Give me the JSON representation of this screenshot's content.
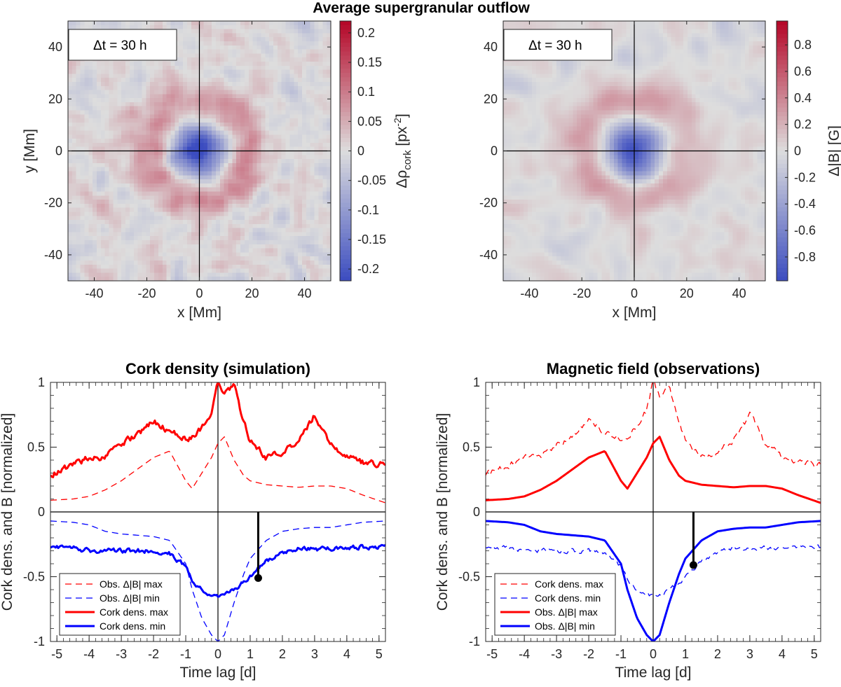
{
  "figure": {
    "suptitle": "Average supergranular outflow"
  },
  "chart_data": [
    {
      "type": "heatmap",
      "id": "map-cork",
      "annotation": "Δt = 30 h",
      "xlabel": "x [Mm]",
      "ylabel": "y [Mm]",
      "colorbar_label": "Δρcork [px⁻²]",
      "colorbar_label_parts": {
        "symbol": "Δρ",
        "subscript": "cork",
        "unit_open": " [px",
        "unit_sup": "-2",
        "unit_close": "]"
      },
      "xlim": [
        -50,
        50
      ],
      "ylim": [
        -50,
        50
      ],
      "xticks": [
        -40,
        -20,
        0,
        20,
        40
      ],
      "yticks": [
        -40,
        -20,
        0,
        20,
        40
      ],
      "clim": [
        -0.22,
        0.22
      ],
      "cticks": [
        -0.2,
        -0.15,
        -0.1,
        -0.05,
        0,
        0.05,
        0.1,
        0.15,
        0.2
      ],
      "ctick_labels": [
        "-0.2",
        "-0.15",
        "-0.1",
        "-0.05",
        "0",
        "0.05",
        "0.1",
        "0.15",
        "0.2"
      ],
      "colormap": {
        "low": "#3b4cc0",
        "mid": "#dddddd",
        "high": "#b40426"
      },
      "features": {
        "center_min": -0.22,
        "center_radius": 9,
        "ring_max": 0.1,
        "ring_radius": 17,
        "ring_width": 6,
        "noise": 0.035
      }
    },
    {
      "type": "heatmap",
      "id": "map-field",
      "annotation": "Δt = 30 h",
      "xlabel": "x [Mm]",
      "ylabel": "",
      "colorbar_label": "Δ|B| [G]",
      "xlim": [
        -50,
        50
      ],
      "ylim": [
        -50,
        50
      ],
      "xticks": [
        -40,
        -20,
        0,
        20,
        40
      ],
      "yticks": [
        -40,
        -20,
        0,
        20,
        40
      ],
      "clim": [
        -0.98,
        0.98
      ],
      "cticks": [
        -0.8,
        -0.6,
        -0.4,
        -0.2,
        0,
        0.2,
        0.4,
        0.6,
        0.8
      ],
      "ctick_labels": [
        "-0.8",
        "-0.6",
        "-0.4",
        "-0.2",
        "0",
        "0.2",
        "0.4",
        "0.6",
        "0.8"
      ],
      "colormap": {
        "low": "#3b4cc0",
        "mid": "#dddddd",
        "high": "#b40426"
      },
      "features": {
        "center_min": -0.98,
        "center_radius": 9,
        "ring_max": 0.35,
        "ring_radius": 17,
        "ring_width": 7,
        "noise": 0.12
      }
    },
    {
      "type": "line",
      "id": "lines-sim",
      "title": "Cork density (simulation)",
      "xlabel": "Time lag [d]",
      "ylabel": "Cork dens. and B [normalized]",
      "xlim": [
        -5.2,
        5.2
      ],
      "ylim": [
        -1,
        1
      ],
      "xticks": [
        -5,
        -4,
        -3,
        -2,
        -1,
        0,
        1,
        2,
        3,
        4,
        5
      ],
      "yticks": [
        -1,
        -0.5,
        0,
        0.5,
        1
      ],
      "ytick_labels": [
        "-1",
        "-0.5",
        "0",
        "0.5",
        "1"
      ],
      "marker": {
        "x": 1.25,
        "y": -0.51
      },
      "x": [
        -5.2,
        -4.5,
        -4,
        -3.5,
        -3,
        -2.5,
        -2,
        -1.5,
        -1,
        -0.8,
        -0.5,
        -0.2,
        0,
        0.2,
        0.5,
        0.8,
        1,
        1.5,
        2,
        2.5,
        3,
        3.5,
        4,
        4.5,
        5.2
      ],
      "series": [
        {
          "name": "Obs. Δ|B| max",
          "color": "#ff0000",
          "dash": true,
          "width": 1.3,
          "noise": 0.0,
          "values": [
            0.09,
            0.1,
            0.12,
            0.17,
            0.24,
            0.33,
            0.42,
            0.47,
            0.24,
            0.18,
            0.3,
            0.42,
            0.53,
            0.58,
            0.4,
            0.28,
            0.24,
            0.21,
            0.2,
            0.19,
            0.2,
            0.2,
            0.18,
            0.13,
            0.07
          ]
        },
        {
          "name": "Obs. Δ|B| min",
          "color": "#0000ff",
          "dash": true,
          "width": 1.3,
          "noise": 0.0,
          "values": [
            -0.07,
            -0.08,
            -0.1,
            -0.15,
            -0.17,
            -0.18,
            -0.19,
            -0.22,
            -0.4,
            -0.6,
            -0.82,
            -0.95,
            -1.0,
            -0.95,
            -0.7,
            -0.48,
            -0.36,
            -0.22,
            -0.15,
            -0.13,
            -0.12,
            -0.12,
            -0.1,
            -0.08,
            -0.07
          ]
        },
        {
          "name": "Cork dens. max",
          "color": "#ff0000",
          "dash": false,
          "width": 3,
          "noise": 0.025,
          "values": [
            0.29,
            0.36,
            0.42,
            0.42,
            0.52,
            0.6,
            0.7,
            0.62,
            0.57,
            0.58,
            0.65,
            0.78,
            1.0,
            0.9,
            0.97,
            0.7,
            0.55,
            0.42,
            0.46,
            0.55,
            0.75,
            0.52,
            0.43,
            0.38,
            0.36
          ]
        },
        {
          "name": "Cork dens. min",
          "color": "#0000ff",
          "dash": false,
          "width": 3,
          "noise": 0.018,
          "values": [
            -0.27,
            -0.28,
            -0.3,
            -0.3,
            -0.3,
            -0.3,
            -0.3,
            -0.32,
            -0.42,
            -0.52,
            -0.6,
            -0.64,
            -0.66,
            -0.65,
            -0.6,
            -0.55,
            -0.5,
            -0.38,
            -0.31,
            -0.28,
            -0.29,
            -0.28,
            -0.28,
            -0.27,
            -0.27
          ]
        }
      ]
    },
    {
      "type": "line",
      "id": "lines-obs",
      "title": "Magnetic field (observations)",
      "xlabel": "Time lag [d]",
      "ylabel": "Cork dens. and B [normalized]",
      "xlim": [
        -5.2,
        5.2
      ],
      "ylim": [
        -1,
        1
      ],
      "xticks": [
        -5,
        -4,
        -3,
        -2,
        -1,
        0,
        1,
        2,
        3,
        4,
        5
      ],
      "yticks": [
        -1,
        -0.5,
        0,
        0.5,
        1
      ],
      "ytick_labels": [
        "-1",
        "-0.5",
        "0",
        "0.5",
        "1"
      ],
      "marker": {
        "x": 1.25,
        "y": -0.41
      },
      "x": [
        -5.2,
        -4.5,
        -4,
        -3.5,
        -3,
        -2.5,
        -2,
        -1.5,
        -1,
        -0.8,
        -0.5,
        -0.2,
        0,
        0.2,
        0.5,
        0.8,
        1,
        1.5,
        2,
        2.5,
        3,
        3.5,
        4,
        4.5,
        5.2
      ],
      "series": [
        {
          "name": "Cork dens. max",
          "color": "#ff0000",
          "dash": true,
          "width": 1.3,
          "noise": 0.025,
          "values": [
            0.29,
            0.36,
            0.42,
            0.42,
            0.52,
            0.6,
            0.7,
            0.62,
            0.57,
            0.58,
            0.65,
            0.78,
            1.0,
            0.9,
            0.97,
            0.7,
            0.55,
            0.42,
            0.46,
            0.55,
            0.75,
            0.52,
            0.43,
            0.38,
            0.36
          ]
        },
        {
          "name": "Cork dens. min",
          "color": "#0000ff",
          "dash": true,
          "width": 1.3,
          "noise": 0.018,
          "values": [
            -0.27,
            -0.28,
            -0.3,
            -0.3,
            -0.3,
            -0.3,
            -0.3,
            -0.32,
            -0.42,
            -0.52,
            -0.6,
            -0.64,
            -0.66,
            -0.65,
            -0.6,
            -0.55,
            -0.5,
            -0.38,
            -0.31,
            -0.28,
            -0.29,
            -0.28,
            -0.28,
            -0.27,
            -0.27
          ]
        },
        {
          "name": "Obs. Δ|B| max",
          "color": "#ff0000",
          "dash": false,
          "width": 3,
          "noise": 0.0,
          "values": [
            0.09,
            0.1,
            0.12,
            0.17,
            0.24,
            0.33,
            0.42,
            0.47,
            0.24,
            0.18,
            0.3,
            0.42,
            0.53,
            0.58,
            0.4,
            0.28,
            0.24,
            0.21,
            0.2,
            0.19,
            0.2,
            0.2,
            0.18,
            0.13,
            0.07
          ]
        },
        {
          "name": "Obs. Δ|B| min",
          "color": "#0000ff",
          "dash": false,
          "width": 3,
          "noise": 0.0,
          "values": [
            -0.07,
            -0.08,
            -0.1,
            -0.15,
            -0.17,
            -0.18,
            -0.19,
            -0.22,
            -0.4,
            -0.6,
            -0.82,
            -0.95,
            -1.0,
            -0.95,
            -0.7,
            -0.48,
            -0.36,
            -0.22,
            -0.15,
            -0.13,
            -0.12,
            -0.12,
            -0.1,
            -0.08,
            -0.07
          ]
        }
      ]
    }
  ]
}
